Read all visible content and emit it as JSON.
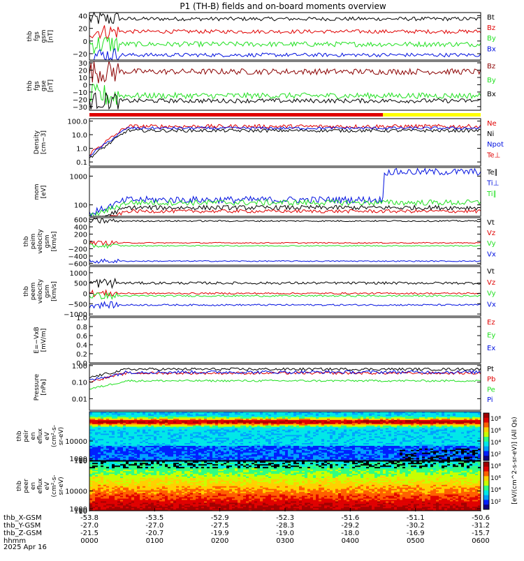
{
  "title": "P1 (TH-B) fields and on-board moments overview",
  "date_label": "2025 Apr 16",
  "colors": {
    "black": "#000000",
    "red": "#e00000",
    "green": "#20e020",
    "blue": "#0010e0",
    "darkred": "#8b0000",
    "yellow": "#ffff00"
  },
  "status_bar": {
    "red_fraction": 0.75
  },
  "xaxis": {
    "rows": [
      {
        "label": "thb_X-GSM",
        "values": [
          "-53.8",
          "-53.5",
          "-52.9",
          "-52.3",
          "-51.6",
          "-51.1",
          "-50.6"
        ]
      },
      {
        "label": "thb_Y-GSM",
        "values": [
          "-27.0",
          "-27.0",
          "-27.5",
          "-28.3",
          "-29.2",
          "-30.2",
          "-31.2"
        ]
      },
      {
        "label": "thb_Z-GSM",
        "values": [
          "-21.5",
          "-20.7",
          "-19.9",
          "-19.0",
          "-18.0",
          "-16.9",
          "-15.7"
        ]
      },
      {
        "label": "hhmm",
        "values": [
          "0000",
          "0100",
          "0200",
          "0300",
          "0400",
          "0500",
          "0600"
        ]
      }
    ]
  },
  "chart_data": [
    {
      "type": "line",
      "id": "fgs_gsm",
      "ylabel": [
        "thb",
        "fgs",
        "gsm",
        "[nT]"
      ],
      "ylim": [
        -30,
        45
      ],
      "ticks": [
        {
          "v": 40,
          "t": "40"
        },
        {
          "v": 20,
          "t": "20"
        },
        {
          "v": 0,
          "t": "0"
        },
        {
          "v": -20,
          "t": "−20"
        }
      ],
      "series": [
        {
          "name": "Bt",
          "color": "black",
          "level": 35,
          "noise": 3
        },
        {
          "name": "Bz",
          "color": "red",
          "level": 15,
          "noise": 3
        },
        {
          "name": "By",
          "color": "green",
          "level": -5,
          "noise": 4
        },
        {
          "name": "Bx",
          "color": "blue",
          "level": -22,
          "noise": 3
        }
      ]
    },
    {
      "type": "line",
      "id": "fgs_gse",
      "ylabel": [
        "thb",
        "fgs",
        "gse",
        "[nT]"
      ],
      "ylim": [
        -35,
        32
      ],
      "ticks": [
        {
          "v": 30,
          "t": "30"
        },
        {
          "v": 20,
          "t": "20"
        },
        {
          "v": 10,
          "t": "10"
        },
        {
          "v": 0,
          "t": "0"
        },
        {
          "v": -10,
          "t": "−10"
        },
        {
          "v": -20,
          "t": "−20"
        },
        {
          "v": -30,
          "t": "−30"
        }
      ],
      "series": [
        {
          "name": "Bz",
          "color": "darkred",
          "level": 18,
          "noise": 4
        },
        {
          "name": "By",
          "color": "green",
          "level": -15,
          "noise": 4
        },
        {
          "name": "Bx",
          "color": "black",
          "level": -22,
          "noise": 3
        }
      ]
    },
    {
      "type": "line",
      "id": "density",
      "log": true,
      "ylabel": [
        "Density",
        "[cm−3]"
      ],
      "ylim": [
        0.05,
        150
      ],
      "ticks": [
        {
          "v": 100,
          "t": "100.0"
        },
        {
          "v": 10,
          "t": "10.0"
        },
        {
          "v": 1,
          "t": "1.0"
        },
        {
          "v": 0.1,
          "t": "0.1"
        }
      ],
      "series": [
        {
          "name": "Ne",
          "color": "red",
          "level": 40,
          "noise": 0.15
        },
        {
          "name": "Ni",
          "color": "black",
          "level": 20,
          "noise": 0.12
        },
        {
          "name": "Npot",
          "color": "blue",
          "level": 30,
          "noise": 0.1
        },
        {
          "name": "Te⊥",
          "color": "red",
          "level": 0,
          "noise": 0
        }
      ]
    },
    {
      "type": "line",
      "id": "temp",
      "log": true,
      "ylabel": [
        "mom",
        "[eV]"
      ],
      "ylim": [
        40,
        2000
      ],
      "ticks": [
        {
          "v": 1000,
          "t": "1000"
        },
        {
          "v": 100,
          "t": "100"
        }
      ],
      "series": [
        {
          "name": "Te∥",
          "color": "black",
          "level": 80,
          "noise": 0.08
        },
        {
          "name": "Ti⊥",
          "color": "blue",
          "level": 150,
          "noise": 0.12
        },
        {
          "name": "Ti∥",
          "color": "green",
          "level": 120,
          "noise": 0.1
        },
        {
          "name": "",
          "color": "red",
          "level": 60,
          "noise": 0.06
        }
      ]
    },
    {
      "type": "line",
      "id": "peim",
      "ylabel": [
        "thb",
        "peim",
        "velocity",
        "gsm",
        "[km/s]"
      ],
      "ylim": [
        -650,
        650
      ],
      "ticks": [
        {
          "v": 600,
          "t": "600"
        },
        {
          "v": 400,
          "t": "400"
        },
        {
          "v": 200,
          "t": "200"
        },
        {
          "v": 0,
          "t": "0"
        },
        {
          "v": -200,
          "t": "−200"
        },
        {
          "v": -400,
          "t": "−400"
        },
        {
          "v": -600,
          "t": "−600"
        }
      ],
      "series": [
        {
          "name": "Vt",
          "color": "black",
          "level": 560,
          "noise": 20
        },
        {
          "name": "Vz",
          "color": "red",
          "level": -40,
          "noise": 15
        },
        {
          "name": "Vy",
          "color": "green",
          "level": -120,
          "noise": 15
        },
        {
          "name": "Vx",
          "color": "blue",
          "level": -540,
          "noise": 15
        }
      ]
    },
    {
      "type": "line",
      "id": "peem",
      "ylabel": [
        "thb",
        "peem",
        "velocity",
        "gsm",
        "[km/s]"
      ],
      "ylim": [
        -1100,
        1300
      ],
      "ticks": [
        {
          "v": 1000,
          "t": "1000"
        },
        {
          "v": 500,
          "t": "500"
        },
        {
          "v": 0,
          "t": "0"
        },
        {
          "v": -500,
          "t": "−500"
        },
        {
          "v": -1000,
          "t": "−1000"
        }
      ],
      "series": [
        {
          "name": "Vt",
          "color": "black",
          "level": 500,
          "noise": 60
        },
        {
          "name": "Vz",
          "color": "red",
          "level": 0,
          "noise": 40
        },
        {
          "name": "Vy",
          "color": "green",
          "level": -120,
          "noise": 40
        },
        {
          "name": "Vx",
          "color": "blue",
          "level": -560,
          "noise": 40
        }
      ]
    },
    {
      "type": "line",
      "id": "efield",
      "ylabel": [
        "E=−VxB",
        "[mV/m]"
      ],
      "ylim": [
        0,
        1
      ],
      "ticks": [
        {
          "v": 1,
          "t": "1.0"
        },
        {
          "v": 0.8,
          "t": "0.8"
        },
        {
          "v": 0.6,
          "t": "0.6"
        },
        {
          "v": 0.4,
          "t": "0.4"
        },
        {
          "v": 0.2,
          "t": "0.2"
        },
        {
          "v": 0,
          "t": "0.0"
        }
      ],
      "series": [
        {
          "name": "Ez",
          "color": "red",
          "level": null
        },
        {
          "name": "Ey",
          "color": "green",
          "level": null
        },
        {
          "name": "Ex",
          "color": "blue",
          "level": null
        }
      ]
    },
    {
      "type": "line",
      "id": "pressure",
      "log": true,
      "ylabel": [
        "Pressure",
        "[nPa]"
      ],
      "ylim": [
        0.002,
        1.2
      ],
      "ticks": [
        {
          "v": 1,
          "t": "1.00"
        },
        {
          "v": 0.1,
          "t": "0.10"
        },
        {
          "v": 0.01,
          "t": "0.01"
        }
      ],
      "series": [
        {
          "name": "Pt",
          "color": "black",
          "level": 0.6,
          "noise": 0.08
        },
        {
          "name": "Pb",
          "color": "red",
          "level": 0.35,
          "noise": 0.08
        },
        {
          "name": "Pe",
          "color": "green",
          "level": 0.12,
          "noise": 0.06
        },
        {
          "name": "Pi",
          "color": "blue",
          "level": 0.4,
          "noise": 0.1
        }
      ]
    },
    {
      "type": "heatmap",
      "id": "peir",
      "ylabel": [
        "thb",
        "peir",
        "en",
        "eflux",
        "eV",
        "(cm²-s-",
        "sr-eV)"
      ],
      "ylim": [
        5,
        25000
      ],
      "ticks": [
        {
          "v": 10000,
          "t": "10000"
        },
        {
          "v": 1000,
          "t": "1000"
        },
        {
          "v": 100,
          "t": "100"
        },
        {
          "v": 10,
          "t": "10"
        }
      ]
    },
    {
      "type": "heatmap",
      "id": "peer",
      "ylabel": [
        "thb",
        "peer",
        "en",
        "eflux",
        "eV",
        "(cm²-s-",
        "sr-eV)"
      ],
      "ylim": [
        5,
        25000
      ],
      "ticks": [
        {
          "v": 10000,
          "t": "10000"
        },
        {
          "v": 1000,
          "t": "1000"
        },
        {
          "v": 100,
          "t": "100"
        },
        {
          "v": 10,
          "t": "10"
        }
      ]
    }
  ],
  "colorbar": {
    "label": "[eV/(cm^2-s-sr-eV)] (All Qs)",
    "ticks": [
      "10⁸",
      "10⁶",
      "10⁴",
      "10²",
      "10⁸",
      "10⁶",
      "10⁴",
      "10²"
    ]
  }
}
